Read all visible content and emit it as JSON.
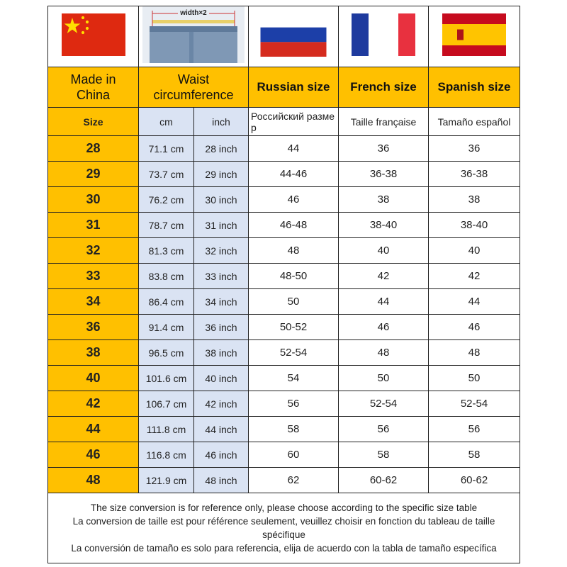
{
  "flags": {
    "china": {
      "colors": [
        "#de2910",
        "#ffde00"
      ]
    },
    "waist_image": {
      "label": "width×2"
    },
    "russia": {
      "colors": [
        "#ffffff",
        "#1c3fa8",
        "#d52b1e"
      ]
    },
    "france": {
      "colors": [
        "#1e3a9e",
        "#ffffff",
        "#e8313f"
      ]
    },
    "spain": {
      "colors": [
        "#c60b1e",
        "#ffc400"
      ]
    }
  },
  "header": {
    "made_in_china": "Made in China",
    "waist": "Waist circumference",
    "russian": "Russian size",
    "french": "French size",
    "spanish": "Spanish size"
  },
  "subheader": {
    "size": "Size",
    "cm": "cm",
    "inch": "inch",
    "russian": "Российский размер",
    "french": "Taille française",
    "spanish": "Tamaño español"
  },
  "rows": [
    [
      "28",
      "71.1 cm",
      "28 inch",
      "44",
      "36",
      "36"
    ],
    [
      "29",
      "73.7 cm",
      "29 inch",
      "44-46",
      "36-38",
      "36-38"
    ],
    [
      "30",
      "76.2 cm",
      "30 inch",
      "46",
      "38",
      "38"
    ],
    [
      "31",
      "78.7 cm",
      "31 inch",
      "46-48",
      "38-40",
      "38-40"
    ],
    [
      "32",
      "81.3 cm",
      "32 inch",
      "48",
      "40",
      "40"
    ],
    [
      "33",
      "83.8 cm",
      "33 inch",
      "48-50",
      "42",
      "42"
    ],
    [
      "34",
      "86.4 cm",
      "34 inch",
      "50",
      "44",
      "44"
    ],
    [
      "36",
      "91.4 cm",
      "36 inch",
      "50-52",
      "46",
      "46"
    ],
    [
      "38",
      "96.5 cm",
      "38 inch",
      "52-54",
      "48",
      "48"
    ],
    [
      "40",
      "101.6 cm",
      "40 inch",
      "54",
      "50",
      "50"
    ],
    [
      "42",
      "106.7 cm",
      "42 inch",
      "56",
      "52-54",
      "52-54"
    ],
    [
      "44",
      "111.8 cm",
      "44 inch",
      "58",
      "56",
      "56"
    ],
    [
      "46",
      "116.8 cm",
      "46 inch",
      "60",
      "58",
      "58"
    ],
    [
      "48",
      "121.9 cm",
      "48 inch",
      "62",
      "60-62",
      "60-62"
    ]
  ],
  "footer": [
    "The size conversion is for reference only, please choose according to the specific size table",
    "La conversion de taille est pour référence seulement, veuillez choisir en fonction du tableau de taille spécifique",
    "La conversión de tamaño es solo para referencia, elija de acuerdo con la tabla de tamaño específica"
  ],
  "colors": {
    "header_yellow": "#ffc000",
    "waist_blue": "#dae3f3"
  }
}
